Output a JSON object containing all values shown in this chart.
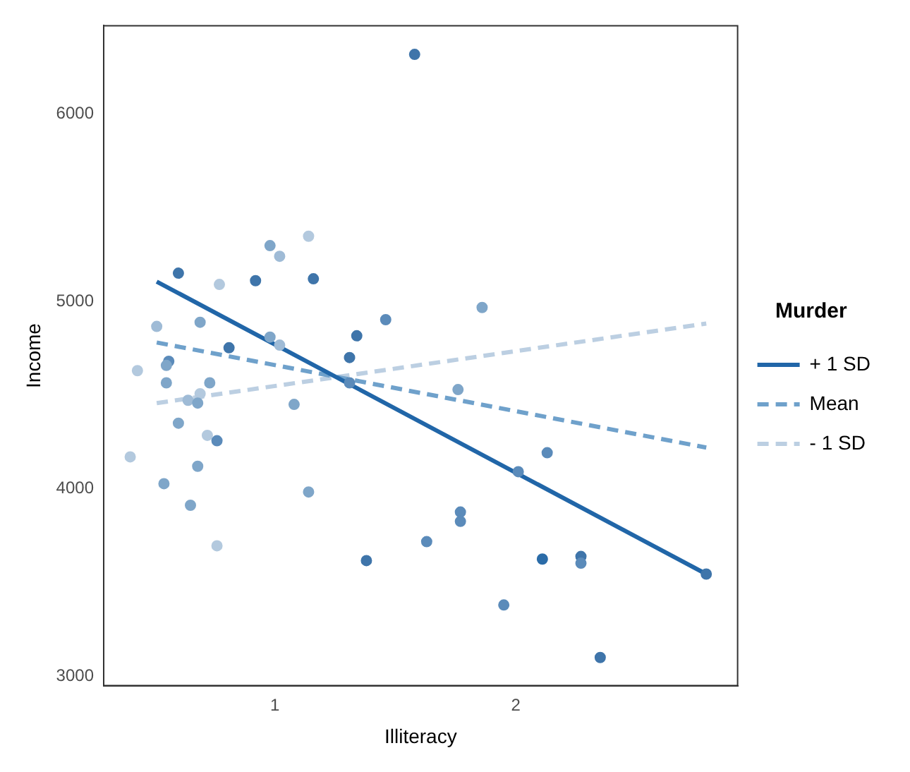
{
  "chart_data": {
    "type": "scatter",
    "xlabel": "Illiteracy",
    "ylabel": "Income",
    "legend_title": "Murder",
    "legend": "right",
    "grid": false,
    "xlim": [
      0.29,
      2.92
    ],
    "ylim": [
      2950,
      6470
    ],
    "xticks": [
      1,
      2
    ],
    "yticks": [
      3000,
      4000,
      5000,
      6000
    ],
    "series": [
      {
        "marker": "circle",
        "x": [
          0.6,
          0.77,
          0.92,
          1.16,
          0.98,
          1.14,
          1.02,
          1.58,
          0.51,
          0.69,
          1.34,
          0.98,
          1.02,
          0.81,
          1.31,
          0.43,
          0.56,
          0.55,
          0.55,
          0.73,
          1.31,
          0.69,
          0.64,
          0.68,
          1.08,
          0.6,
          0.72,
          0.76,
          0.4,
          0.68,
          0.54,
          1.14,
          0.65,
          0.76,
          1.38,
          1.46,
          1.86,
          1.76,
          2.13,
          2.01,
          1.77,
          1.77,
          1.63,
          2.11,
          2.27,
          2.27,
          1.95,
          2.35,
          2.79
        ],
        "values": [
          5150,
          5090,
          5110,
          5120,
          5297,
          5347,
          5240,
          6317,
          4866,
          4888,
          4816,
          4809,
          4766,
          4752,
          4700,
          4630,
          4680,
          4658,
          4565,
          4565,
          4565,
          4507,
          4472,
          4457,
          4450,
          4350,
          4285,
          4256,
          4170,
          4120,
          4027,
          3983,
          3912,
          3696,
          3617,
          4902,
          4967,
          4529,
          4192,
          4091,
          3876,
          3826,
          3718,
          3625,
          3639,
          3603,
          3380,
          3100,
          3545
        ],
        "colors": [
          "#3f75aa",
          "#b3c9de",
          "#3f75aa",
          "#3f75aa",
          "#7fa6c9",
          "#b3c9de",
          "#9fbbd6",
          "#3f75aa",
          "#9fbbd6",
          "#7fa6c9",
          "#3f75aa",
          "#7fa6c9",
          "#9fbbd6",
          "#3f75aa",
          "#3f75aa",
          "#b3c9de",
          "#5b8bba",
          "#7fa6c9",
          "#7fa6c9",
          "#7fa6c9",
          "#5b8bba",
          "#b3c9de",
          "#9fbbd6",
          "#7fa6c9",
          "#7fa6c9",
          "#7fa6c9",
          "#b3c9de",
          "#5b8bba",
          "#b3c9de",
          "#7fa6c9",
          "#7fa6c9",
          "#7fa6c9",
          "#7fa6c9",
          "#b3c9de",
          "#3f75aa",
          "#5b8bba",
          "#7fa6c9",
          "#7fa6c9",
          "#5b8bba",
          "#5b8bba",
          "#5b8bba",
          "#5b8bba",
          "#5b8bba",
          "#2b6ca8",
          "#3f75aa",
          "#5b8bba",
          "#5b8bba",
          "#3f75aa",
          "#3f75aa"
        ]
      },
      {
        "type": "line",
        "name": "+ 1 SD",
        "color": "#2166a8",
        "line_style": "solid",
        "marker": "none",
        "x": [
          0.51,
          2.79
        ],
        "values": [
          5105,
          3545
        ]
      },
      {
        "type": "line",
        "name": "Mean",
        "color": "#6fa1cb",
        "line_style": "dashed",
        "marker": "none",
        "x": [
          0.51,
          2.79
        ],
        "values": [
          4780,
          4220
        ]
      },
      {
        "type": "line",
        "name": "- 1 SD",
        "color": "#bccfe2",
        "line_style": "dashed",
        "marker": "none",
        "x": [
          0.51,
          2.79
        ],
        "values": [
          4457,
          4881
        ]
      }
    ]
  }
}
